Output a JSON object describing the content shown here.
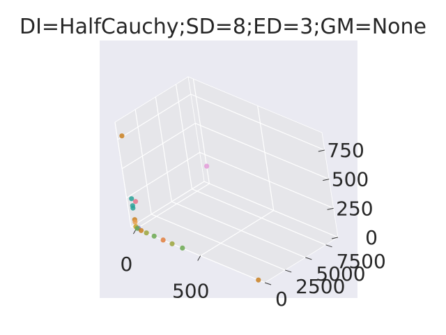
{
  "chart_data": {
    "type": "scatter",
    "projection": "3d",
    "title": "DI=HalfCauchy;SD=8;ED=3;GM=None",
    "xlabel": "",
    "ylabel": "",
    "zlabel": "",
    "x_ticks": [
      "0",
      "500"
    ],
    "y_ticks": [
      "0",
      "2500",
      "5000",
      "7500"
    ],
    "z_ticks": [
      "0",
      "250",
      "500",
      "750"
    ],
    "xlim": [
      -40,
      1000
    ],
    "ylim": [
      0,
      9000
    ],
    "zlim": [
      0,
      900
    ],
    "grid": true,
    "background": "#eaeaf2",
    "pane_color": "#e6e6ea",
    "grid_color": "#ffffff",
    "points": [
      {
        "x": 0,
        "y": 0,
        "z": 800,
        "color": "#c97f1f"
      },
      {
        "x": 0,
        "y": 0,
        "z": 260,
        "color": "#2aa198"
      },
      {
        "x": 30,
        "y": 0,
        "z": 250,
        "color": "#e8738a"
      },
      {
        "x": 0,
        "y": 0,
        "z": 200,
        "color": "#2aa198"
      },
      {
        "x": 0,
        "y": 0,
        "z": 180,
        "color": "#2aa198"
      },
      {
        "x": 0,
        "y": 0,
        "z": 80,
        "color": "#c97f1f"
      },
      {
        "x": 0,
        "y": 0,
        "z": 60,
        "color": "#e8a050"
      },
      {
        "x": 0,
        "y": 0,
        "z": 20,
        "color": "#c9a227"
      },
      {
        "x": 20,
        "y": 0,
        "z": 15,
        "color": "#8b7fd6"
      },
      {
        "x": 10,
        "y": 0,
        "z": 10,
        "color": "#6aa84f"
      },
      {
        "x": 40,
        "y": 0,
        "z": 5,
        "color": "#c97f1f"
      },
      {
        "x": 80,
        "y": 0,
        "z": 3,
        "color": "#9aa33a"
      },
      {
        "x": 140,
        "y": 0,
        "z": 3,
        "color": "#6aa84f"
      },
      {
        "x": 210,
        "y": 0,
        "z": 2,
        "color": "#e07c3c"
      },
      {
        "x": 280,
        "y": 0,
        "z": 2,
        "color": "#9aa33a"
      },
      {
        "x": 360,
        "y": 0,
        "z": 2,
        "color": "#6aa84f"
      },
      {
        "x": 0,
        "y": 9000,
        "z": 150,
        "color": "#e39ad8"
      },
      {
        "x": 950,
        "y": 0,
        "z": 0,
        "color": "#c97f1f"
      }
    ]
  }
}
